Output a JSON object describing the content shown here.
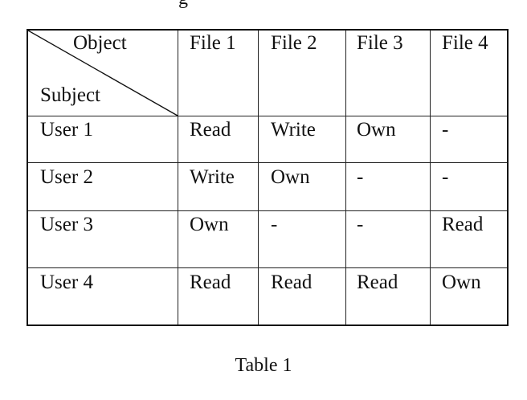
{
  "top_fragment": "g",
  "table": {
    "corner": {
      "object_label": "Object",
      "subject_label": "Subject"
    },
    "columns": [
      "File 1",
      "File 2",
      "File 3",
      "File 4"
    ],
    "rows": [
      {
        "subject": "User 1",
        "cells": [
          "Read",
          "Write",
          "Own",
          "-"
        ]
      },
      {
        "subject": "User 2",
        "cells": [
          "Write",
          "Own",
          "-",
          "-"
        ]
      },
      {
        "subject": "User 3",
        "cells": [
          "Own",
          "-",
          "-",
          "Read"
        ]
      },
      {
        "subject": "User 4",
        "cells": [
          "Read",
          "Read",
          "Read",
          "Own"
        ]
      }
    ]
  },
  "caption": "Table 1"
}
